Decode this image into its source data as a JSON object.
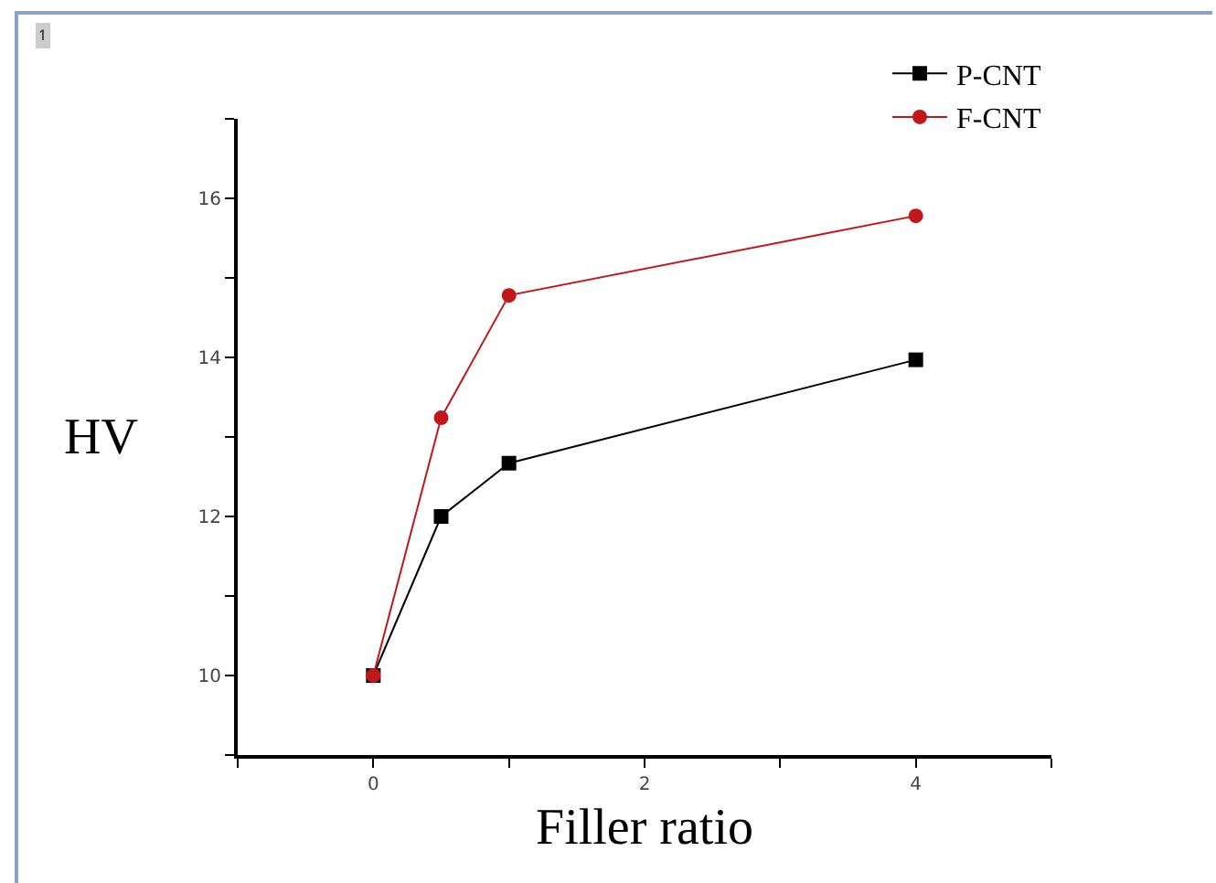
{
  "chart_data": {
    "type": "line",
    "xlabel": "Filler ratio",
    "ylabel": "HV",
    "annotations": [
      "1"
    ],
    "x": [
      0,
      0.5,
      1,
      4
    ],
    "series": [
      {
        "name": "P-CNT",
        "color": "#000000",
        "marker": "square",
        "values": [
          10,
          12.0,
          12.67,
          13.97
        ]
      },
      {
        "name": "F-CNT",
        "color": "#c0171a",
        "marker": "circle",
        "values": [
          10,
          13.24,
          14.78,
          15.78
        ]
      }
    ],
    "xlim": [
      -1,
      5
    ],
    "xticks": [
      {
        "value": -1,
        "label": null
      },
      0,
      {
        "value": 1,
        "label": null
      },
      2,
      {
        "value": 3,
        "label": null
      },
      4,
      {
        "value": 5,
        "label": null
      }
    ],
    "ylim": [
      9,
      17
    ],
    "yticks": [
      {
        "value": 9,
        "label": null
      },
      10,
      {
        "value": 11,
        "label": null
      },
      12,
      {
        "value": 13,
        "label": null
      },
      14,
      {
        "value": 15,
        "label": null
      },
      16,
      {
        "value": 17,
        "label": null
      }
    ],
    "grid": false,
    "legend": "top right",
    "line_style": "solid"
  }
}
